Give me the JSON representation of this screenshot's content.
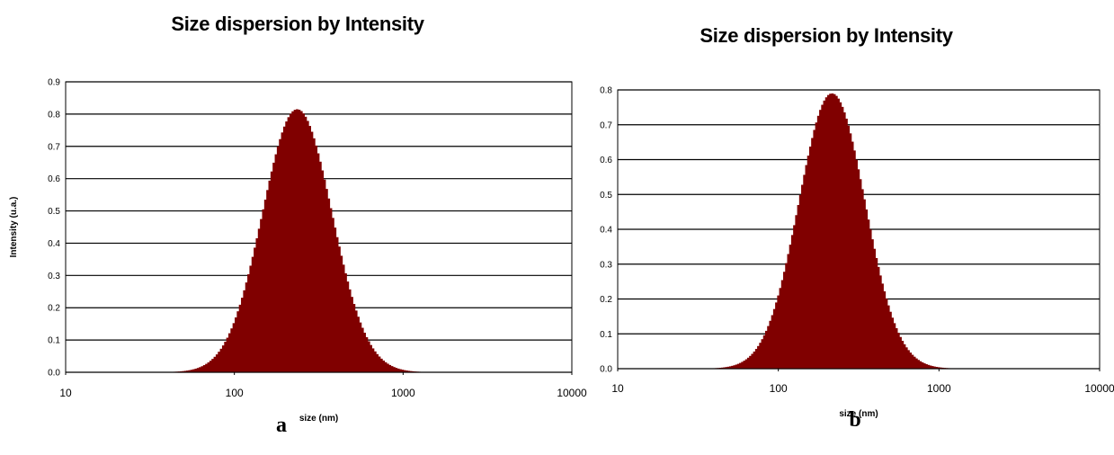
{
  "chart_data": [
    {
      "type": "bar",
      "panel_label": "a",
      "title": "Size dispersion by Intensity",
      "xlabel": "size (nm)",
      "ylabel": "Intensity (u.a.)",
      "x_scale": "log",
      "xlim": [
        10,
        10000
      ],
      "ylim": [
        0,
        0.9
      ],
      "x_ticks": [
        "10",
        "100",
        "1000",
        "10000"
      ],
      "y_ticks": [
        "0.0",
        "0.1",
        "0.2",
        "0.3",
        "0.4",
        "0.5",
        "0.6",
        "0.7",
        "0.8",
        "0.9"
      ],
      "grid": "horizontal",
      "color": "#800000",
      "distribution": {
        "peak_size_nm": 235,
        "peak_intensity": 0.815,
        "range_nm": [
          40,
          1500
        ]
      }
    },
    {
      "type": "bar",
      "panel_label": "b",
      "title": "Size dispersion by Intensity",
      "xlabel": "size (nm)",
      "ylabel": "",
      "x_scale": "log",
      "xlim": [
        10,
        10000
      ],
      "ylim": [
        0,
        0.8
      ],
      "x_ticks": [
        "10",
        "100",
        "1000",
        "10000"
      ],
      "y_ticks": [
        "0.0",
        "0.1",
        "0.2",
        "0.3",
        "0.4",
        "0.5",
        "0.6",
        "0.7",
        "0.8"
      ],
      "grid": "horizontal",
      "color": "#800000",
      "distribution": {
        "peak_size_nm": 215,
        "peak_intensity": 0.79,
        "range_nm": [
          35,
          1500
        ]
      }
    }
  ]
}
